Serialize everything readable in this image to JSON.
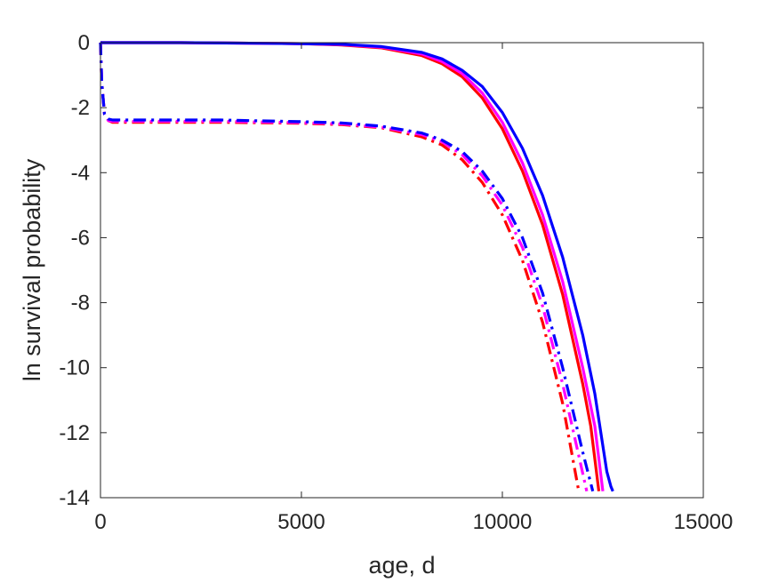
{
  "chart_data": {
    "type": "line",
    "title": "",
    "xlabel": "age, d",
    "ylabel": "ln survival probability",
    "xlim": [
      0,
      15000
    ],
    "ylim": [
      -14,
      0
    ],
    "xticks": [
      0,
      5000,
      10000,
      15000
    ],
    "yticks": [
      0,
      -2,
      -4,
      -6,
      -8,
      -10,
      -12,
      -14
    ],
    "xtick_labels": [
      "0",
      "5000",
      "10000",
      "15000"
    ],
    "ytick_labels": [
      "0",
      "-2",
      "-4",
      "-6",
      "-8",
      "-10",
      "-12",
      "-14"
    ],
    "grid": false,
    "legend": "none",
    "series": [
      {
        "color": "#ff0000",
        "style": "solid",
        "x": [
          0,
          2000,
          4000,
          5000,
          6000,
          7000,
          8000,
          8500,
          9000,
          9500,
          10000,
          10500,
          11000,
          11500,
          12000,
          12200,
          12400
        ],
        "y": [
          0,
          0,
          -0.02,
          -0.03,
          -0.07,
          -0.16,
          -0.4,
          -0.65,
          -1.05,
          -1.7,
          -2.65,
          -3.95,
          -5.6,
          -7.75,
          -10.5,
          -11.8,
          -13.8
        ]
      },
      {
        "color": "#ff00ff",
        "style": "solid",
        "x": [
          0,
          2000,
          4000,
          5000,
          6000,
          7000,
          8000,
          8500,
          9000,
          9500,
          10000,
          10500,
          11000,
          11500,
          12000,
          12300,
          12500
        ],
        "y": [
          0,
          0,
          -0.02,
          -0.03,
          -0.06,
          -0.14,
          -0.35,
          -0.58,
          -0.95,
          -1.55,
          -2.45,
          -3.7,
          -5.3,
          -7.35,
          -10.0,
          -11.8,
          -13.8
        ]
      },
      {
        "color": "#0000ff",
        "style": "solid",
        "x": [
          0,
          2000,
          4000,
          5000,
          6000,
          7000,
          8000,
          8500,
          9000,
          9500,
          10000,
          10500,
          11000,
          11500,
          12000,
          12300,
          12600,
          12700,
          12750
        ],
        "y": [
          0,
          0,
          -0.02,
          -0.03,
          -0.05,
          -0.12,
          -0.3,
          -0.5,
          -0.85,
          -1.35,
          -2.15,
          -3.25,
          -4.7,
          -6.6,
          -9.0,
          -10.8,
          -13.2,
          -13.65,
          -13.8
        ]
      },
      {
        "color": "#ff0000",
        "style": "dashdot",
        "x": [
          0,
          30,
          100,
          200,
          300,
          1000,
          3000,
          5000,
          6000,
          7000,
          8000,
          8500,
          9000,
          9500,
          10000,
          10500,
          11000,
          11500,
          11900
        ],
        "y": [
          0,
          -1.2,
          -2.2,
          -2.4,
          -2.45,
          -2.45,
          -2.45,
          -2.48,
          -2.52,
          -2.62,
          -2.9,
          -3.15,
          -3.6,
          -4.3,
          -5.3,
          -6.7,
          -8.6,
          -11.1,
          -13.8
        ]
      },
      {
        "color": "#ff00ff",
        "style": "dashdot",
        "x": [
          0,
          30,
          100,
          200,
          300,
          1000,
          3000,
          5000,
          6000,
          7000,
          8000,
          8500,
          9000,
          9500,
          10000,
          10500,
          11000,
          11500,
          12100
        ],
        "y": [
          0,
          -1.2,
          -2.2,
          -2.4,
          -2.42,
          -2.42,
          -2.42,
          -2.46,
          -2.5,
          -2.6,
          -2.83,
          -3.05,
          -3.45,
          -4.1,
          -5.0,
          -6.3,
          -8.1,
          -10.5,
          -13.8
        ]
      },
      {
        "color": "#0000ff",
        "style": "dashdot",
        "x": [
          0,
          30,
          100,
          200,
          300,
          1000,
          3000,
          5000,
          6000,
          7000,
          8000,
          8500,
          9000,
          9500,
          10000,
          10500,
          11000,
          11500,
          12000,
          12250
        ],
        "y": [
          0,
          -1.2,
          -2.2,
          -2.35,
          -2.38,
          -2.38,
          -2.38,
          -2.43,
          -2.47,
          -2.57,
          -2.78,
          -3.0,
          -3.35,
          -3.95,
          -4.8,
          -6.0,
          -7.7,
          -10.0,
          -12.6,
          -13.8
        ]
      }
    ]
  }
}
